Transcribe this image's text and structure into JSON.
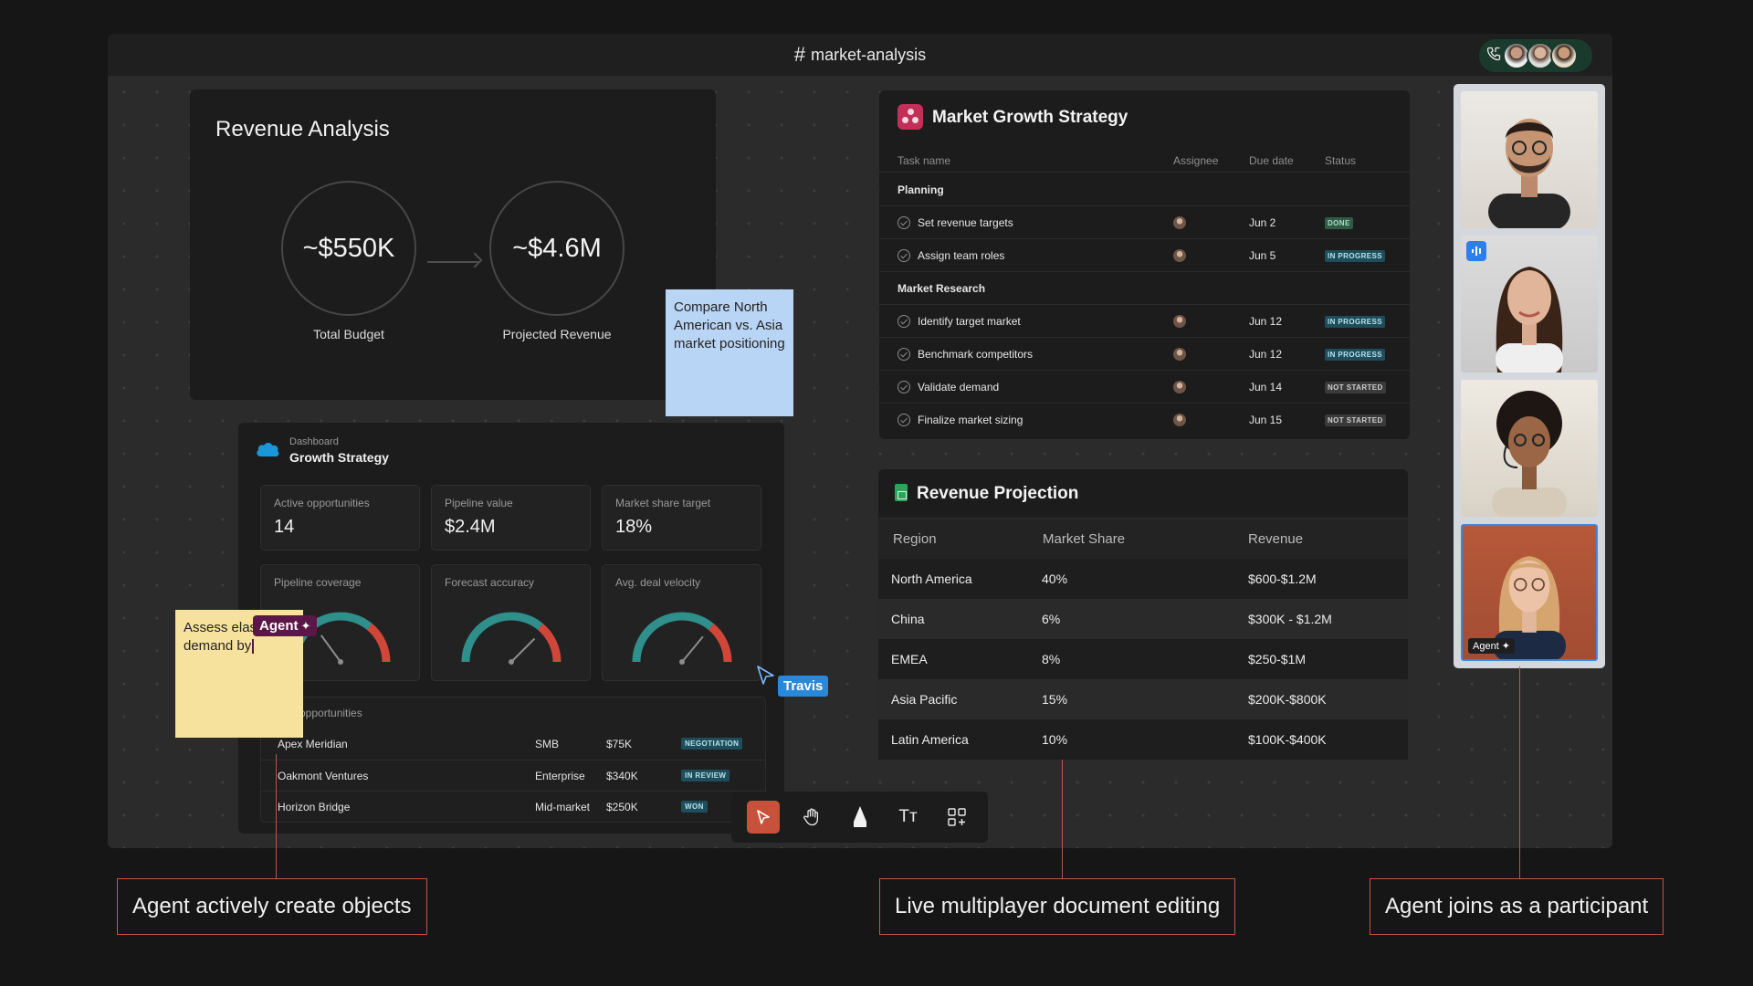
{
  "window": {
    "channel_hash": "#",
    "channel_name": "market-analysis"
  },
  "call": {
    "icon": "phone-icon"
  },
  "revenue_analysis": {
    "title": "Revenue Analysis",
    "budget_value": "~$550K",
    "budget_label": "Total Budget",
    "projected_value": "~$4.6M",
    "projected_label": "Projected Revenue"
  },
  "sticky_blue": {
    "text": "Compare North American vs. Asia market positioning"
  },
  "sticky_yellow": {
    "text": "Assess elas demand by"
  },
  "agent_tag": {
    "label": "Agent",
    "sparkle": "✦"
  },
  "travis_tag": {
    "label": "Travis"
  },
  "dashboard": {
    "breadcrumb": "Dashboard",
    "title": "Growth Strategy",
    "kpis": [
      {
        "label": "Active opportunities",
        "value": "14"
      },
      {
        "label": "Pipeline value",
        "value": "$2.4M"
      },
      {
        "label": "Market share target",
        "value": "18%"
      }
    ],
    "gauges": [
      {
        "label": "Pipeline coverage",
        "level": 0.3
      },
      {
        "label": "Forecast accuracy",
        "level": 0.75
      },
      {
        "label": "Avg. deal velocity",
        "level": 0.72
      }
    ],
    "opportunities_title": "opportunities",
    "opportunities": [
      {
        "name": "Apex Meridian",
        "segment": "SMB",
        "amount": "$75K",
        "status": "NEGOTIATION"
      },
      {
        "name": "Oakmont Ventures",
        "segment": "Enterprise",
        "amount": "$340K",
        "status": "IN REVIEW"
      },
      {
        "name": "Horizon Bridge",
        "segment": "Mid-market",
        "amount": "$250K",
        "status": "WON"
      }
    ]
  },
  "toolbar": {
    "tools": [
      "select-tool-icon",
      "hand-tool-icon",
      "pen-tool-icon",
      "text-tool-icon",
      "add-widget-icon"
    ],
    "text_glyph": "Tт"
  },
  "market_growth": {
    "title": "Market Growth Strategy",
    "columns": {
      "task": "Task name",
      "assignee": "Assignee",
      "due": "Due date",
      "status": "Status"
    },
    "sections": [
      {
        "name": "Planning",
        "tasks": [
          {
            "name": "Set revenue targets",
            "due": "Jun 2",
            "status": "DONE",
            "kind": "done"
          },
          {
            "name": "Assign team roles",
            "due": "Jun 5",
            "status": "IN PROGRESS",
            "kind": "prog"
          }
        ]
      },
      {
        "name": "Market Research",
        "tasks": [
          {
            "name": "Identify target market",
            "due": "Jun 12",
            "status": "IN PROGRESS",
            "kind": "prog"
          },
          {
            "name": "Benchmark competitors",
            "due": "Jun 12",
            "status": "IN PROGRESS",
            "kind": "prog"
          },
          {
            "name": "Validate demand",
            "due": "Jun 14",
            "status": "NOT STARTED",
            "kind": "nots"
          },
          {
            "name": "Finalize market sizing",
            "due": "Jun 15",
            "status": "NOT STARTED",
            "kind": "nots"
          }
        ]
      }
    ]
  },
  "revenue_projection": {
    "title": "Revenue Projection",
    "columns": {
      "region": "Region",
      "share": "Market Share",
      "revenue": "Revenue"
    },
    "rows": [
      {
        "region": "North America",
        "share": "40%",
        "revenue": "$600-$1.2M"
      },
      {
        "region": "China",
        "share": "6%",
        "revenue": "$300K - $1.2M"
      },
      {
        "region": "EMEA",
        "share": "8%",
        "revenue": "$250-$1M"
      },
      {
        "region": "Asia Pacific",
        "share": "15%",
        "revenue": "$200K-$800K"
      },
      {
        "region": "Latin America",
        "share": "10%",
        "revenue": "$100K-$400K"
      }
    ]
  },
  "participants": {
    "agent_label": "Agent ✦"
  },
  "callouts": {
    "left": "Agent actively create objects",
    "middle": "Live multiplayer document editing",
    "right": "Agent joins as a participant"
  },
  "colors": {
    "accent_red": "#c7513a",
    "cursor_blue": "#2a88db",
    "agent_purple": "#5b1747",
    "gauge_teal": "#2f8f8a",
    "gauge_red": "#d0473a"
  }
}
